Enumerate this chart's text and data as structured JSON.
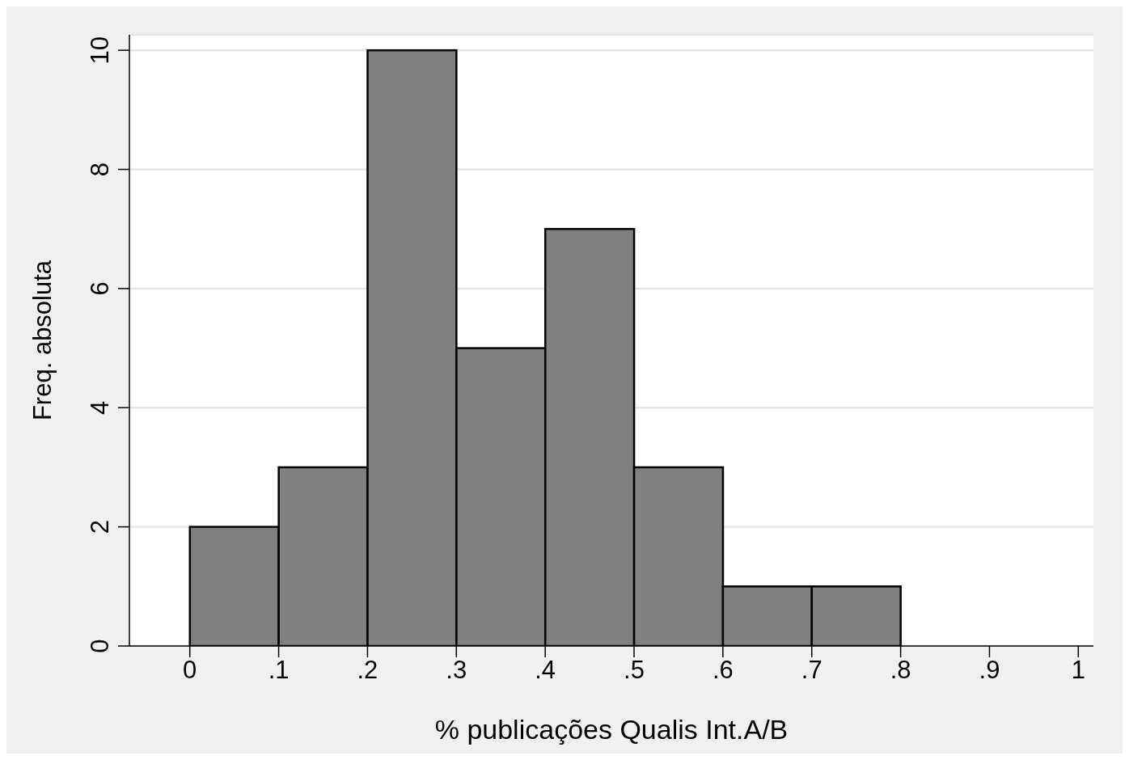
{
  "chart_data": {
    "type": "histogram",
    "xlabel": "% publicações Qualis Int.A/B",
    "ylabel": "Freq. absoluta",
    "bins": [
      0,
      0.1,
      0.2,
      0.3,
      0.4,
      0.5,
      0.6,
      0.7,
      0.8
    ],
    "values": [
      2,
      3,
      10,
      5,
      7,
      3,
      1,
      1
    ],
    "color": "#808080",
    "xlim": [
      -0.068,
      1.017
    ],
    "ylim": [
      0,
      10.26
    ],
    "xticks": [
      0,
      {
        "value": 0.1,
        "label": ".1"
      },
      {
        "value": 0.2,
        "label": ".2"
      },
      {
        "value": 0.3,
        "label": ".3"
      },
      {
        "value": 0.4,
        "label": ".4"
      },
      {
        "value": 0.5,
        "label": ".5"
      },
      {
        "value": 0.6,
        "label": ".6"
      },
      {
        "value": 0.7,
        "label": ".7"
      },
      {
        "value": 0.8,
        "label": ".8"
      },
      {
        "value": 0.9,
        "label": ".9"
      },
      1
    ],
    "yticks": [
      0,
      2,
      4,
      6,
      8,
      10
    ],
    "grid": "y"
  }
}
